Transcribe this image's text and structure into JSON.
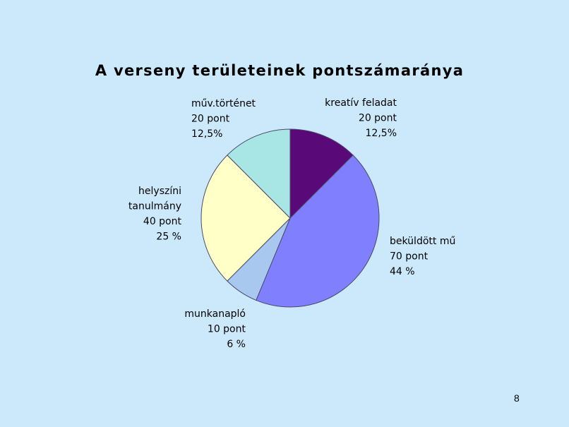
{
  "slide": {
    "page_number": "8"
  },
  "chart_data": {
    "type": "pie",
    "title": "A verseny területeinek pontszámaránya",
    "slices": [
      {
        "name": "kreatív feladat",
        "value": 20,
        "value_label": "20 pont",
        "percent_label": "12,5%",
        "color": "#5a0a78"
      },
      {
        "name": "beküldött mű",
        "value": 70,
        "value_label": "70 pont",
        "percent_label": "44 %",
        "color": "#8080ff"
      },
      {
        "name": "munkanapló",
        "value": 10,
        "value_label": "10 pont",
        "percent_label": "6 %",
        "color": "#a8c8f0"
      },
      {
        "name": "helyszíni tanulmány",
        "name_lines": [
          "helyszíni",
          "tanulmány"
        ],
        "value": 40,
        "value_label": "40 pont",
        "percent_label": "25 %",
        "color": "#ffffc8"
      },
      {
        "name": "műv.történet",
        "value": 20,
        "value_label": "20 pont",
        "percent_label": "12,5%",
        "color": "#a8e6e6"
      }
    ]
  }
}
